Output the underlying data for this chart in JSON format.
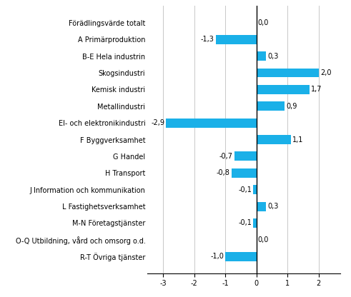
{
  "categories": [
    "Förädlingsvärde totalt",
    "A Primärproduktion",
    "B-E Hela industrin",
    "Skogsindustri",
    "Kemisk industri",
    "Metallindustri",
    "El- och elektronikindustri",
    "F Byggverksamhet",
    "G Handel",
    "H Transport",
    "J Information och kommunikation",
    "L Fastighetsverksamhet",
    "M-N Företagstjänster",
    "O-Q Utbildning, vård och omsorg o.d.",
    "R-T Övriga tjänster"
  ],
  "values": [
    0.0,
    -1.3,
    0.3,
    2.0,
    1.7,
    0.9,
    -2.9,
    1.1,
    -0.7,
    -0.8,
    -0.1,
    0.3,
    -0.1,
    0.0,
    -1.0
  ],
  "bar_color": "#1ab0e8",
  "value_labels": [
    "0,0",
    "-1,3",
    "0,3",
    "2,0",
    "1,7",
    "0,9",
    "-2,9",
    "1,1",
    "-0,7",
    "-0,8",
    "-0,1",
    "0,3",
    "-0,1",
    "0,0",
    "-1,0"
  ],
  "xlim": [
    -3.5,
    2.7
  ],
  "xticks": [
    -3,
    -2,
    -1,
    0,
    1,
    2
  ],
  "background_color": "#ffffff",
  "grid_color": "#c8c8c8",
  "label_fontsize": 7.0,
  "value_fontsize": 7.0,
  "bar_height": 0.55
}
